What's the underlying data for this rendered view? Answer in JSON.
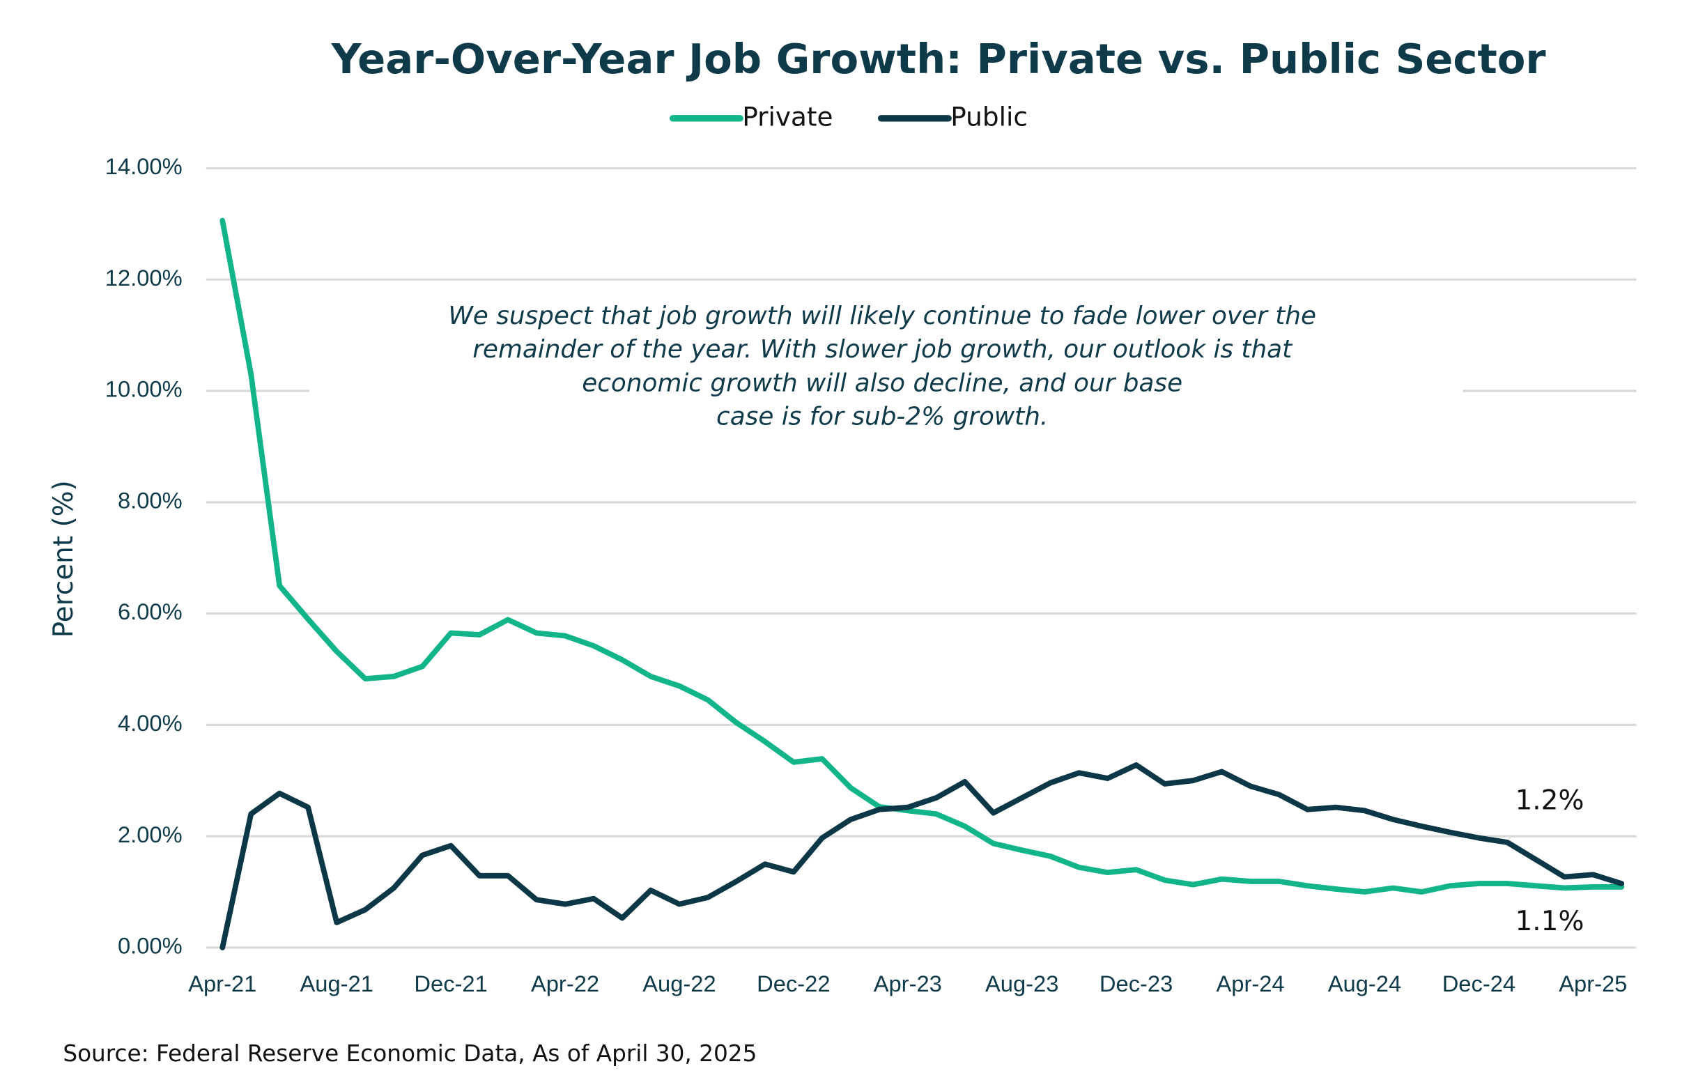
{
  "chart_data": {
    "type": "line",
    "title": "Year-Over-Year Job Growth: Private vs. Public Sector",
    "y_label": "Percent (%)",
    "source": "Source: Federal Reserve Economic Data, As of April 30, 2025",
    "annotation": [
      "We suspect that job growth will likely continue to fade lower over the",
      "remainder of the year. With slower job growth, our outlook is that",
      "economic growth will also decline, and our base",
      "case is for sub-2% growth."
    ],
    "end_labels": [
      {
        "text": "1.2%",
        "series": 1
      },
      {
        "text": "1.1%",
        "series": 0
      }
    ],
    "legend": "top",
    "grid": true,
    "categories": [
      "Apr-21",
      null,
      null,
      null,
      "Aug-21",
      null,
      null,
      null,
      "Dec-21",
      null,
      null,
      null,
      "Apr-22",
      null,
      null,
      null,
      "Aug-22",
      null,
      null,
      null,
      "Dec-22",
      null,
      null,
      null,
      "Apr-23",
      null,
      null,
      null,
      "Aug-23",
      null,
      null,
      null,
      "Dec-23",
      null,
      null,
      null,
      "Apr-24",
      null,
      null,
      null,
      "Aug-24",
      null,
      null,
      null,
      "Dec-24",
      null,
      null,
      null,
      "Apr-25",
      null
    ],
    "ylim": [
      0,
      14
    ],
    "yticks": [
      {
        "value": 0,
        "label": "0.00%"
      },
      {
        "value": 2,
        "label": "2.00%"
      },
      {
        "value": 4,
        "label": "4.00%"
      },
      {
        "value": 6,
        "label": "6.00%"
      },
      {
        "value": 8,
        "label": "8.00%"
      },
      {
        "value": 10,
        "label": "10.00%"
      },
      {
        "value": 12,
        "label": "12.00%"
      },
      {
        "value": 14,
        "label": "14.00%"
      }
    ],
    "series": [
      {
        "name": "Private",
        "color": "#12b48a",
        "values": [
          13.06,
          10.3,
          6.5,
          5.9,
          5.32,
          4.83,
          4.87,
          5.05,
          5.65,
          5.62,
          5.89,
          5.65,
          5.6,
          5.42,
          5.17,
          4.87,
          4.7,
          4.45,
          4.04,
          3.7,
          3.33,
          3.39,
          2.87,
          2.53,
          2.46,
          2.4,
          2.18,
          1.87,
          1.75,
          1.64,
          1.44,
          1.35,
          1.4,
          1.21,
          1.13,
          1.23,
          1.19,
          1.19,
          1.11,
          1.05,
          1.0,
          1.07,
          1.0,
          1.11,
          1.15,
          1.15,
          1.11,
          1.07,
          1.09,
          1.09
        ]
      },
      {
        "name": "Public",
        "color": "#0b3746",
        "values": [
          0,
          2.4,
          2.77,
          2.52,
          0.45,
          0.68,
          1.07,
          1.66,
          1.83,
          1.29,
          1.29,
          0.86,
          0.78,
          0.88,
          0.53,
          1.03,
          0.78,
          0.9,
          1.19,
          1.5,
          1.36,
          1.97,
          2.3,
          2.48,
          2.52,
          2.69,
          2.98,
          2.42,
          2.69,
          2.96,
          3.14,
          3.04,
          3.28,
          2.94,
          3.0,
          3.16,
          2.9,
          2.75,
          2.48,
          2.52,
          2.46,
          2.3,
          2.18,
          2.07,
          1.97,
          1.89,
          1.58,
          1.27,
          1.31,
          1.15
        ]
      }
    ]
  }
}
